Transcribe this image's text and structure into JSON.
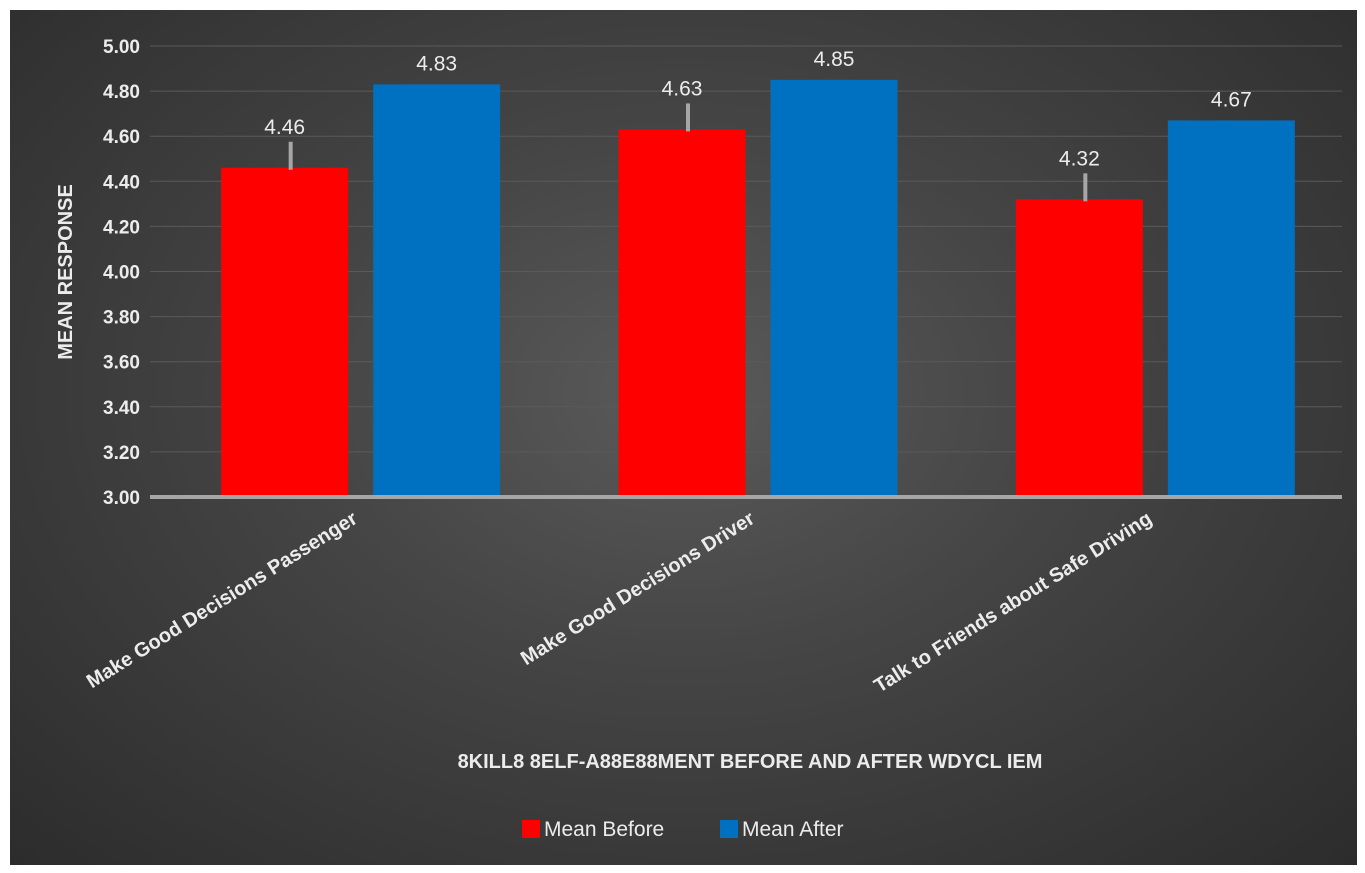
{
  "chart_data": {
    "type": "bar",
    "categories": [
      "Make Good Decisions Passenger",
      "Make Good Decisions Driver",
      "Talk to Friends about Safe Driving"
    ],
    "series": [
      {
        "name": "Mean Before",
        "values": [
          4.46,
          4.63,
          4.32
        ],
        "labels": [
          "4.46",
          "4.63",
          "4.32"
        ],
        "color": "#ff0000",
        "error_bars": true
      },
      {
        "name": "Mean After",
        "values": [
          4.83,
          4.85,
          4.67
        ],
        "labels": [
          "4.83",
          "4.85",
          "4.67"
        ],
        "color": "#0070c0"
      }
    ],
    "ylabel": "MEAN RESPONSE",
    "xlabel": "8KILL8 8ELF-A88E88MENT BEFORE AND AFTER WDYCL IEM",
    "ylim": [
      3.0,
      5.0
    ],
    "yticks": [
      "3.00",
      "3.20",
      "3.40",
      "3.60",
      "3.80",
      "4.00",
      "4.20",
      "4.40",
      "4.60",
      "4.80",
      "5.00"
    ],
    "grid": true,
    "legend_position": "bottom"
  },
  "colors": {
    "background": "#3f3f3f",
    "gridline": "#5a5a5a",
    "axis_line": "#a6a6a6",
    "error_bar": "#a6a6a6",
    "text": "#ececec"
  }
}
